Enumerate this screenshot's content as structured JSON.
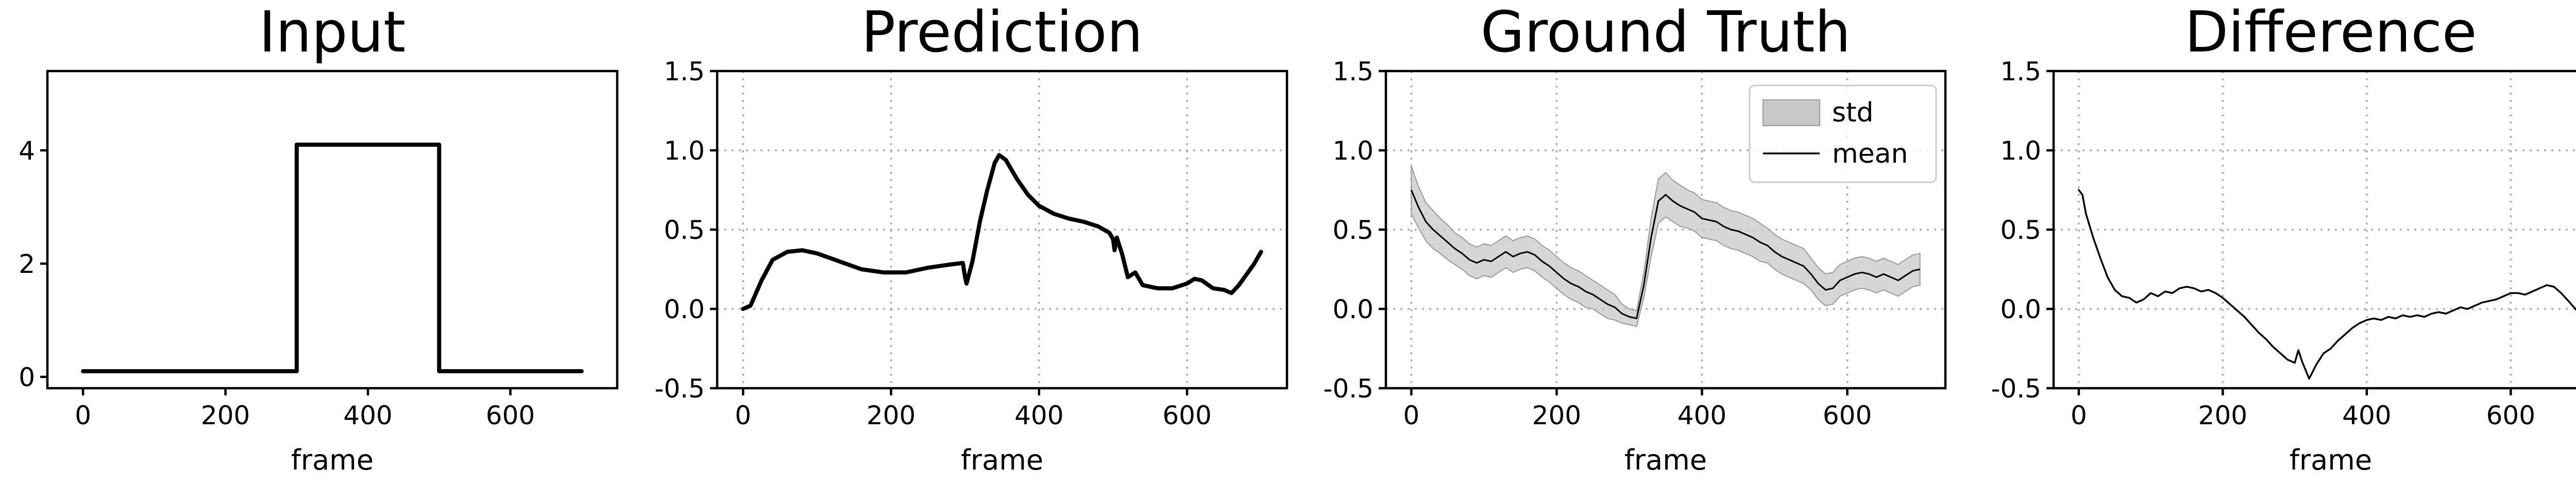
{
  "chart_data": [
    {
      "type": "line",
      "title": "Input",
      "xlabel": "frame",
      "ylabel": "",
      "xlim": [
        -50,
        750
      ],
      "ylim": [
        -0.2,
        5.4
      ],
      "xticks": [
        0,
        200,
        400,
        600
      ],
      "yticks": [
        0,
        2,
        4
      ],
      "grid": false,
      "series": [
        {
          "color": "#000000",
          "width": "thick",
          "points": [
            [
              0,
              0.1
            ],
            [
              300,
              0.1
            ],
            [
              300,
              4.1
            ],
            [
              500,
              4.1
            ],
            [
              500,
              0.1
            ],
            [
              700,
              0.1
            ]
          ]
        }
      ]
    },
    {
      "type": "line",
      "title": "Prediction",
      "xlabel": "frame",
      "ylabel": "",
      "xlim": [
        -35,
        735
      ],
      "ylim": [
        -0.5,
        1.5
      ],
      "xticks": [
        0,
        200,
        400,
        600
      ],
      "yticks": [
        -0.5,
        0.0,
        0.5,
        1.0,
        1.5
      ],
      "grid": true,
      "series": [
        {
          "color": "#000000",
          "width": "thick",
          "points": [
            [
              0,
              0.0
            ],
            [
              10,
              0.02
            ],
            [
              25,
              0.18
            ],
            [
              40,
              0.31
            ],
            [
              60,
              0.36
            ],
            [
              80,
              0.37
            ],
            [
              100,
              0.35
            ],
            [
              130,
              0.3
            ],
            [
              160,
              0.25
            ],
            [
              190,
              0.23
            ],
            [
              220,
              0.23
            ],
            [
              250,
              0.26
            ],
            [
              280,
              0.28
            ],
            [
              297,
              0.29
            ],
            [
              300,
              0.2
            ],
            [
              302,
              0.16
            ],
            [
              310,
              0.3
            ],
            [
              320,
              0.55
            ],
            [
              330,
              0.75
            ],
            [
              340,
              0.92
            ],
            [
              346,
              0.97
            ],
            [
              355,
              0.94
            ],
            [
              370,
              0.82
            ],
            [
              385,
              0.72
            ],
            [
              400,
              0.65
            ],
            [
              420,
              0.6
            ],
            [
              440,
              0.57
            ],
            [
              460,
              0.55
            ],
            [
              480,
              0.52
            ],
            [
              495,
              0.48
            ],
            [
              500,
              0.44
            ],
            [
              502,
              0.37
            ],
            [
              505,
              0.45
            ],
            [
              512,
              0.35
            ],
            [
              520,
              0.2
            ],
            [
              530,
              0.23
            ],
            [
              540,
              0.15
            ],
            [
              560,
              0.13
            ],
            [
              580,
              0.13
            ],
            [
              600,
              0.16
            ],
            [
              610,
              0.19
            ],
            [
              620,
              0.18
            ],
            [
              635,
              0.13
            ],
            [
              650,
              0.12
            ],
            [
              660,
              0.1
            ],
            [
              670,
              0.15
            ],
            [
              690,
              0.28
            ],
            [
              700,
              0.36
            ]
          ]
        }
      ]
    },
    {
      "type": "area",
      "title": "Ground Truth",
      "xlabel": "frame",
      "ylabel": "",
      "xlim": [
        -35,
        735
      ],
      "ylim": [
        -0.5,
        1.5
      ],
      "xticks": [
        0,
        200,
        400,
        600
      ],
      "yticks": [
        -0.5,
        0.0,
        0.5,
        1.0,
        1.5
      ],
      "grid": true,
      "legend": {
        "position": "top-right",
        "entries": [
          "std",
          "mean"
        ]
      },
      "series": [
        {
          "name": "mean",
          "color": "#000000",
          "x": [
            0,
            10,
            20,
            30,
            40,
            50,
            60,
            70,
            80,
            90,
            100,
            110,
            120,
            130,
            140,
            150,
            160,
            170,
            180,
            190,
            200,
            210,
            220,
            230,
            240,
            250,
            260,
            270,
            280,
            290,
            300,
            310,
            320,
            330,
            340,
            350,
            360,
            370,
            380,
            390,
            400,
            410,
            420,
            430,
            440,
            450,
            460,
            470,
            480,
            490,
            500,
            510,
            520,
            530,
            540,
            550,
            560,
            570,
            580,
            590,
            600,
            610,
            620,
            630,
            640,
            650,
            660,
            670,
            680,
            690,
            700
          ],
          "mean": [
            0.75,
            0.64,
            0.55,
            0.5,
            0.46,
            0.42,
            0.38,
            0.35,
            0.31,
            0.29,
            0.31,
            0.3,
            0.33,
            0.36,
            0.33,
            0.35,
            0.36,
            0.34,
            0.3,
            0.27,
            0.23,
            0.19,
            0.16,
            0.14,
            0.11,
            0.09,
            0.06,
            0.03,
            0.01,
            -0.03,
            -0.05,
            -0.06,
            0.15,
            0.45,
            0.68,
            0.72,
            0.68,
            0.65,
            0.63,
            0.61,
            0.57,
            0.56,
            0.55,
            0.52,
            0.5,
            0.49,
            0.47,
            0.45,
            0.42,
            0.4,
            0.36,
            0.33,
            0.31,
            0.29,
            0.27,
            0.22,
            0.16,
            0.12,
            0.13,
            0.18,
            0.2,
            0.22,
            0.23,
            0.22,
            0.2,
            0.22,
            0.2,
            0.18,
            0.21,
            0.24,
            0.25
          ],
          "std": [
            0.15,
            0.13,
            0.12,
            0.12,
            0.11,
            0.11,
            0.1,
            0.1,
            0.1,
            0.1,
            0.1,
            0.1,
            0.1,
            0.1,
            0.1,
            0.1,
            0.1,
            0.1,
            0.1,
            0.1,
            0.1,
            0.1,
            0.1,
            0.1,
            0.1,
            0.09,
            0.09,
            0.09,
            0.08,
            0.06,
            0.05,
            0.05,
            0.08,
            0.12,
            0.14,
            0.14,
            0.13,
            0.13,
            0.12,
            0.12,
            0.12,
            0.12,
            0.12,
            0.12,
            0.12,
            0.12,
            0.12,
            0.12,
            0.12,
            0.11,
            0.11,
            0.11,
            0.11,
            0.11,
            0.11,
            0.1,
            0.1,
            0.1,
            0.1,
            0.1,
            0.1,
            0.1,
            0.1,
            0.1,
            0.1,
            0.1,
            0.1,
            0.1,
            0.1,
            0.1,
            0.1
          ]
        }
      ]
    },
    {
      "type": "line",
      "title": "Difference",
      "xlabel": "frame",
      "ylabel": "",
      "xlim": [
        -35,
        735
      ],
      "ylim": [
        -0.5,
        1.5
      ],
      "xticks": [
        0,
        200,
        400,
        600
      ],
      "yticks": [
        -0.5,
        0.0,
        0.5,
        1.0,
        1.5
      ],
      "grid": true,
      "series": [
        {
          "color": "#000000",
          "width": "thin",
          "points": [
            [
              0,
              0.75
            ],
            [
              5,
              0.72
            ],
            [
              10,
              0.6
            ],
            [
              20,
              0.45
            ],
            [
              30,
              0.32
            ],
            [
              40,
              0.2
            ],
            [
              50,
              0.12
            ],
            [
              60,
              0.08
            ],
            [
              70,
              0.07
            ],
            [
              80,
              0.04
            ],
            [
              90,
              0.06
            ],
            [
              100,
              0.1
            ],
            [
              110,
              0.08
            ],
            [
              120,
              0.11
            ],
            [
              130,
              0.1
            ],
            [
              140,
              0.13
            ],
            [
              150,
              0.14
            ],
            [
              160,
              0.13
            ],
            [
              170,
              0.11
            ],
            [
              180,
              0.12
            ],
            [
              190,
              0.1
            ],
            [
              200,
              0.07
            ],
            [
              210,
              0.03
            ],
            [
              220,
              -0.01
            ],
            [
              230,
              -0.05
            ],
            [
              240,
              -0.1
            ],
            [
              250,
              -0.15
            ],
            [
              260,
              -0.19
            ],
            [
              270,
              -0.24
            ],
            [
              280,
              -0.28
            ],
            [
              290,
              -0.32
            ],
            [
              300,
              -0.34
            ],
            [
              305,
              -0.26
            ],
            [
              310,
              -0.33
            ],
            [
              320,
              -0.44
            ],
            [
              330,
              -0.35
            ],
            [
              340,
              -0.28
            ],
            [
              350,
              -0.25
            ],
            [
              360,
              -0.2
            ],
            [
              370,
              -0.16
            ],
            [
              380,
              -0.12
            ],
            [
              390,
              -0.09
            ],
            [
              400,
              -0.07
            ],
            [
              410,
              -0.06
            ],
            [
              420,
              -0.07
            ],
            [
              430,
              -0.05
            ],
            [
              440,
              -0.06
            ],
            [
              450,
              -0.04
            ],
            [
              460,
              -0.05
            ],
            [
              470,
              -0.04
            ],
            [
              480,
              -0.05
            ],
            [
              490,
              -0.03
            ],
            [
              500,
              -0.02
            ],
            [
              510,
              -0.03
            ],
            [
              520,
              -0.01
            ],
            [
              530,
              0.01
            ],
            [
              540,
              0.0
            ],
            [
              550,
              0.02
            ],
            [
              560,
              0.04
            ],
            [
              570,
              0.05
            ],
            [
              580,
              0.06
            ],
            [
              590,
              0.08
            ],
            [
              600,
              0.1
            ],
            [
              610,
              0.1
            ],
            [
              620,
              0.09
            ],
            [
              630,
              0.11
            ],
            [
              640,
              0.13
            ],
            [
              650,
              0.15
            ],
            [
              660,
              0.14
            ],
            [
              670,
              0.1
            ],
            [
              680,
              0.05
            ],
            [
              690,
              0.0
            ],
            [
              700,
              -0.06
            ]
          ]
        }
      ]
    }
  ]
}
